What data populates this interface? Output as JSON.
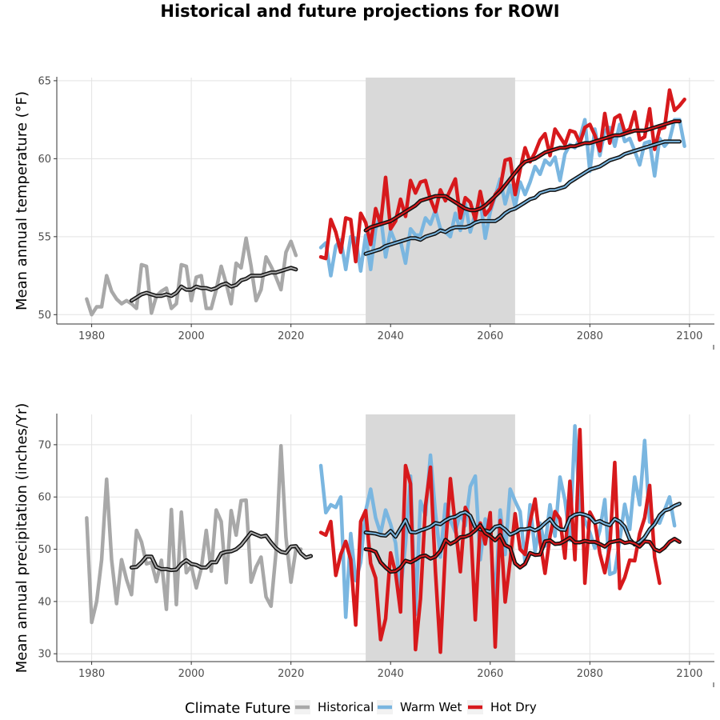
{
  "title": "Historical and future projections for ROWI",
  "colors": {
    "historical": "#a8a8a8",
    "warm_wet": "#7ab6e0",
    "hot_dry": "#d7191c",
    "smooth": "#111111",
    "shade": "#d9d9d9",
    "grid": "#e3e3e3"
  },
  "legend": {
    "title": "Climate Future",
    "items": [
      {
        "label": "Historical",
        "key": "historical"
      },
      {
        "label": "Warm Wet",
        "key": "warm_wet"
      },
      {
        "label": "Hot Dry",
        "key": "hot_dry"
      }
    ]
  },
  "chart_data": [
    {
      "type": "line",
      "ylabel": "Mean annual temperature (°F)",
      "xlim": [
        1973,
        2105
      ],
      "ylim": [
        49.4,
        65.2
      ],
      "xticks": [
        1980,
        2000,
        2020,
        2040,
        2060,
        2080,
        2100
      ],
      "yticks": [
        50,
        55,
        60,
        65
      ],
      "shaded_period": [
        2035,
        2065
      ],
      "grid": true,
      "series": [
        {
          "name": "Historical",
          "key": "historical",
          "x_start": 1979,
          "values": [
            51.0,
            50.0,
            50.5,
            50.5,
            52.5,
            51.5,
            51.0,
            50.7,
            50.9,
            50.7,
            50.4,
            53.2,
            53.1,
            50.1,
            51.2,
            51.5,
            51.7,
            50.4,
            50.7,
            53.2,
            53.1,
            50.9,
            52.4,
            52.5,
            50.4,
            50.4,
            51.6,
            53.1,
            52.0,
            50.7,
            53.3,
            53.0,
            54.9,
            53.1,
            50.9,
            51.6,
            53.7,
            53.1,
            52.4,
            51.6,
            54.0,
            54.7,
            53.8
          ]
        },
        {
          "name": "Warm Wet",
          "key": "warm_wet",
          "x_start": 2026,
          "values": [
            54.3,
            54.6,
            52.5,
            54.4,
            54.8,
            52.9,
            55.0,
            54.9,
            52.8,
            55.1,
            52.9,
            55.5,
            56.4,
            53.7,
            55.4,
            54.6,
            54.7,
            53.3,
            55.5,
            55.1,
            55.1,
            56.2,
            55.8,
            56.7,
            55.5,
            55.3,
            55.0,
            56.5,
            55.4,
            57.1,
            55.3,
            56.5,
            57.4,
            54.9,
            56.6,
            57.6,
            58.7,
            57.1,
            58.3,
            56.9,
            58.5,
            57.7,
            58.5,
            59.5,
            59.0,
            59.9,
            59.6,
            60.1,
            58.6,
            60.3,
            60.9,
            60.7,
            61.3,
            62.5,
            59.2,
            61.9,
            60.2,
            61.8,
            62.0,
            60.8,
            62.2,
            61.1,
            61.3,
            60.5,
            59.6,
            61.0,
            61.1,
            58.9,
            61.3,
            60.8,
            61.2,
            62.5,
            62.5,
            60.8
          ]
        },
        {
          "name": "Hot Dry",
          "key": "hot_dry",
          "x_start": 2026,
          "values": [
            53.7,
            53.6,
            56.1,
            55.3,
            54.0,
            56.2,
            56.1,
            53.4,
            56.5,
            55.9,
            54.5,
            56.8,
            55.8,
            58.8,
            55.5,
            56.0,
            57.4,
            56.3,
            58.6,
            57.8,
            58.5,
            58.6,
            57.4,
            56.6,
            58.0,
            57.3,
            58.0,
            58.7,
            56.2,
            57.5,
            57.2,
            56.1,
            57.9,
            56.4,
            56.8,
            57.7,
            58.1,
            59.9,
            60.0,
            57.7,
            59.3,
            60.7,
            59.8,
            60.4,
            61.2,
            61.6,
            60.2,
            61.9,
            61.4,
            60.9,
            61.8,
            61.7,
            61.0,
            62.0,
            62.2,
            61.5,
            60.5,
            62.9,
            61.0,
            62.6,
            62.8,
            61.7,
            61.9,
            63.0,
            61.2,
            61.4,
            63.2,
            60.6,
            61.9,
            62.0,
            64.4,
            63.1,
            63.4,
            63.8
          ]
        },
        {
          "name": "Historical smooth",
          "key": "smooth_hist",
          "x_start": 1988,
          "values": [
            50.9,
            51.1,
            51.3,
            51.4,
            51.3,
            51.2,
            51.2,
            51.3,
            51.2,
            51.4,
            51.8,
            51.6,
            51.6,
            51.8,
            51.7,
            51.7,
            51.6,
            51.7,
            51.9,
            52.0,
            51.8,
            51.9,
            52.2,
            52.3,
            52.5,
            52.5,
            52.5,
            52.6,
            52.7,
            52.7,
            52.8,
            52.9,
            53.0,
            52.9
          ]
        },
        {
          "name": "Warm Wet smooth",
          "key": "smooth_ww",
          "x_start": 2035,
          "values": [
            53.9,
            54.0,
            54.1,
            54.2,
            54.4,
            54.5,
            54.6,
            54.7,
            54.8,
            54.9,
            54.9,
            54.8,
            55.0,
            55.1,
            55.2,
            55.4,
            55.3,
            55.5,
            55.6,
            55.6,
            55.6,
            55.7,
            55.9,
            56.0,
            56.0,
            56.0,
            56.0,
            56.2,
            56.5,
            56.7,
            56.8,
            57.0,
            57.2,
            57.4,
            57.5,
            57.8,
            57.9,
            58.0,
            58.0,
            58.1,
            58.2,
            58.5,
            58.7,
            58.9,
            59.1,
            59.3,
            59.4,
            59.5,
            59.7,
            59.9,
            60.0,
            60.1,
            60.3,
            60.4,
            60.5,
            60.6,
            60.7,
            60.8,
            60.9,
            61.0,
            61.1,
            61.1,
            61.1,
            61.1
          ]
        },
        {
          "name": "Hot Dry smooth",
          "key": "smooth_hd",
          "x_start": 2035,
          "values": [
            55.4,
            55.6,
            55.7,
            55.8,
            55.9,
            56.0,
            56.2,
            56.4,
            56.6,
            56.8,
            57.0,
            57.3,
            57.4,
            57.5,
            57.6,
            57.6,
            57.6,
            57.4,
            57.2,
            57.0,
            56.8,
            56.7,
            56.7,
            56.8,
            57.0,
            57.3,
            57.6,
            57.9,
            58.3,
            58.7,
            59.1,
            59.5,
            59.8,
            59.9,
            60.0,
            60.2,
            60.4,
            60.5,
            60.6,
            60.7,
            60.7,
            60.8,
            60.8,
            60.9,
            61.0,
            61.0,
            61.1,
            61.2,
            61.3,
            61.4,
            61.5,
            61.5,
            61.6,
            61.7,
            61.8,
            61.8,
            61.8,
            61.9,
            62.0,
            62.1,
            62.2,
            62.3,
            62.4,
            62.4
          ]
        }
      ]
    },
    {
      "type": "line",
      "ylabel": "Mean annual precipitation (inches/Yr)",
      "xlim": [
        1973,
        2105
      ],
      "ylim": [
        28.5,
        75.8
      ],
      "xticks": [
        1980,
        2000,
        2020,
        2040,
        2060,
        2080,
        2100
      ],
      "yticks": [
        30,
        40,
        50,
        60,
        70
      ],
      "shaded_period": [
        2035,
        2065
      ],
      "grid": true,
      "series": [
        {
          "name": "Historical",
          "key": "historical",
          "x_start": 1979,
          "values": [
            56.0,
            36.0,
            40.0,
            48.0,
            63.4,
            48.0,
            39.6,
            48.0,
            44.2,
            41.3,
            53.6,
            51.4,
            47.2,
            47.5,
            43.8,
            47.9,
            38.5,
            57.6,
            39.4,
            57.1,
            45.5,
            46.8,
            42.6,
            46.3,
            53.6,
            45.8,
            57.5,
            55.3,
            43.6,
            57.4,
            52.7,
            59.3,
            59.4,
            43.7,
            46.6,
            48.5,
            40.9,
            39.1,
            49.4,
            69.8,
            52.3,
            43.7,
            50.0,
            50.0
          ]
        },
        {
          "name": "Warm Wet",
          "key": "warm_wet",
          "x_start": 2026,
          "values": [
            66.0,
            57.0,
            58.5,
            58.0,
            60.0,
            37.0,
            53.0,
            44.0,
            47.5,
            57.3,
            61.5,
            56.0,
            53.0,
            57.5,
            54.8,
            51.2,
            42.0,
            51.0,
            64.0,
            37.5,
            59.2,
            56.5,
            68.0,
            57.0,
            48.5,
            58.6,
            55.5,
            53.3,
            57.0,
            54.5,
            62.0,
            64.0,
            48.0,
            55.8,
            52.8,
            40.0,
            57.5,
            49.0,
            61.5,
            59.2,
            57.2,
            47.5,
            58.5,
            49.6,
            55.0,
            50.6,
            58.5,
            52.5,
            63.8,
            59.4,
            51.7,
            73.6,
            57.8,
            55.5,
            53.2,
            50.2,
            53.6,
            59.5,
            45.2,
            45.6,
            51.7,
            58.6,
            53.8,
            63.8,
            58.5,
            70.8,
            55.2,
            55.5,
            55.0,
            57.5,
            60.0,
            54.5
          ]
        },
        {
          "name": "Hot Dry",
          "key": "hot_dry",
          "x_start": 2026,
          "values": [
            53.2,
            52.7,
            55.3,
            45.0,
            49.0,
            51.5,
            48.0,
            35.5,
            55.3,
            57.4,
            47.3,
            44.5,
            32.7,
            36.7,
            49.3,
            45.5,
            38.0,
            66.0,
            62.5,
            30.8,
            40.5,
            58.3,
            65.7,
            45.8,
            30.3,
            50.0,
            63.5,
            54.5,
            45.7,
            58.0,
            56.0,
            36.5,
            55.0,
            51.0,
            57.0,
            31.3,
            55.5,
            39.9,
            47.8,
            56.8,
            50.0,
            49.0,
            55.2,
            59.6,
            51.6,
            45.4,
            52.5,
            57.2,
            55.8,
            48.3,
            63.0,
            48.0,
            72.9,
            43.5,
            57.1,
            55.3,
            49.2,
            45.5,
            50.5,
            66.6,
            42.5,
            44.6,
            47.9,
            47.8,
            53.0,
            56.0,
            62.2,
            48.5,
            43.5
          ]
        },
        {
          "name": "Historical smooth",
          "key": "smooth_hist",
          "x_start": 1988,
          "values": [
            46.5,
            46.6,
            47.5,
            48.6,
            48.6,
            46.6,
            46.2,
            46.2,
            46.0,
            46.1,
            47.2,
            47.9,
            47.2,
            47.0,
            46.5,
            46.5,
            47.5,
            47.5,
            49.2,
            49.5,
            49.6,
            50.0,
            50.8,
            52.0,
            53.2,
            52.8,
            52.4,
            52.6,
            51.3,
            50.2,
            49.5,
            49.3,
            50.5,
            50.6,
            49.2,
            48.4,
            48.7
          ]
        },
        {
          "name": "Warm Wet smooth",
          "key": "smooth_ww",
          "x_start": 2035,
          "values": [
            53.2,
            53.1,
            53.0,
            52.7,
            52.6,
            53.5,
            52.4,
            54.0,
            55.6,
            53.3,
            53.2,
            53.6,
            53.9,
            54.3,
            55.0,
            54.8,
            55.5,
            56.0,
            56.2,
            56.8,
            57.1,
            56.4,
            54.2,
            53.8,
            53.6,
            53.3,
            54.3,
            54.5,
            53.8,
            52.8,
            53.2,
            53.8,
            53.8,
            54.0,
            53.6,
            54.1,
            55.0,
            55.8,
            54.5,
            53.8,
            53.7,
            56.0,
            56.6,
            56.8,
            56.6,
            56.2,
            55.1,
            55.4,
            54.9,
            54.6,
            55.8,
            55.3,
            54.3,
            51.9,
            50.9,
            51.4,
            52.3,
            53.8,
            54.8,
            56.5,
            57.4,
            57.7,
            58.3,
            58.7
          ]
        },
        {
          "name": "Hot Dry smooth",
          "key": "smooth_hd",
          "x_start": 2035,
          "values": [
            50.0,
            49.9,
            49.5,
            47.5,
            46.5,
            45.7,
            45.8,
            46.5,
            47.8,
            47.5,
            48.0,
            48.6,
            48.8,
            48.2,
            48.6,
            49.7,
            51.8,
            51.0,
            51.5,
            52.3,
            52.4,
            52.8,
            53.6,
            54.6,
            53.1,
            52.5,
            51.7,
            52.7,
            50.8,
            50.3,
            47.3,
            46.5,
            47.2,
            49.3,
            48.9,
            49.0,
            51.5,
            51.7,
            51.0,
            51.1,
            51.6,
            52.2,
            51.3,
            51.3,
            51.6,
            51.4,
            51.4,
            51.0,
            50.5,
            51.3,
            51.5,
            51.7,
            51.2,
            51.4,
            51.1,
            50.5,
            51.5,
            51.4,
            50.0,
            49.6,
            50.3,
            51.4,
            52.0,
            51.4
          ]
        }
      ]
    }
  ]
}
